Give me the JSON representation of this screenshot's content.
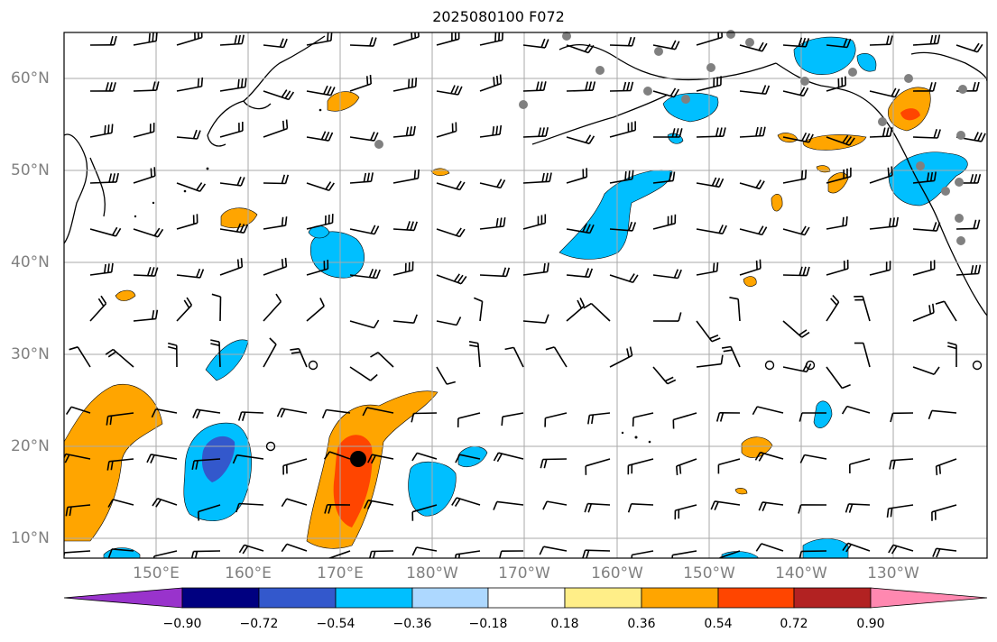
{
  "title": "2025080100 F072",
  "lat_labels": [
    "60°N",
    "50°N",
    "40°N",
    "30°N",
    "20°N",
    "10°N"
  ],
  "lon_labels": [
    "150°E",
    "160°E",
    "170°E",
    "180°W",
    "170°W",
    "160°W",
    "150°W",
    "140°W",
    "130°W"
  ],
  "map": {
    "lat_range": [
      8,
      65
    ],
    "lon_range_east": [
      140,
      240
    ],
    "gridlines": true,
    "features": [
      "coastlines",
      "wind-barbs",
      "filled-contours",
      "station-markers",
      "tropical-cyclone-marker"
    ]
  },
  "colorbar": {
    "ticks": [
      "−0.90",
      "−0.72",
      "−0.54",
      "−0.36",
      "−0.18",
      "0.18",
      "0.36",
      "0.54",
      "0.72",
      "0.90"
    ],
    "colors": [
      "#9933cc",
      "#000080",
      "#3358cc",
      "#00bfff",
      "#add8ff",
      "#ffffff",
      "#ffee88",
      "#ffa500",
      "#ff4500",
      "#b22222",
      "#ff88b0"
    ],
    "extend": "both"
  },
  "chart_data": {
    "type": "map",
    "title": "2025080100 F072",
    "xlabel": "",
    "ylabel": "",
    "levels": [
      -0.9,
      -0.72,
      -0.54,
      -0.36,
      -0.18,
      0.18,
      0.36,
      0.54,
      0.72,
      0.9
    ],
    "yticks": [
      "60°N",
      "50°N",
      "40°N",
      "30°N",
      "20°N",
      "10°N"
    ],
    "xticks": [
      "150°E",
      "160°E",
      "170°E",
      "180°W",
      "170°W",
      "160°W",
      "150°W",
      "140°W",
      "130°W"
    ],
    "storm_center": {
      "lat": 19,
      "lon": 172
    }
  }
}
